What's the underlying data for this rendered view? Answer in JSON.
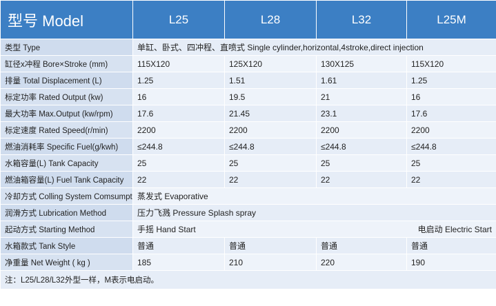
{
  "header": {
    "model_title": "型号 Model",
    "models": [
      "L25",
      "L28",
      "L32",
      "L25M"
    ]
  },
  "rows": {
    "type": {
      "label": "类型 Type",
      "value": "单缸、卧式、四冲程、直喷式 Single cylinder,horizontal,4stroke,direct injection"
    },
    "bore": {
      "label": "缸径x冲程 Bore×Stroke (mm)",
      "values": [
        "115X120",
        "125X120",
        "130X125",
        "115X120"
      ]
    },
    "displacement": {
      "label": "排量 Total Displacement (L)",
      "values": [
        "1.25",
        "1.51",
        "1.61",
        "1.25"
      ]
    },
    "rated_output": {
      "label": "标定功率 Rated Output (kw)",
      "values": [
        "16",
        "19.5",
        "21",
        "16"
      ]
    },
    "max_output": {
      "label": "最大功率 Max.Output (kw/rpm)",
      "values": [
        "17.6",
        "21.45",
        "23.1",
        "17.6"
      ]
    },
    "rated_speed": {
      "label": "标定速度 Rated Speed(r/min)",
      "values": [
        "2200",
        "2200",
        "2200",
        "2200"
      ]
    },
    "specific_fuel": {
      "label": "燃油消耗率 Specific Fuel(g/kwh)",
      "values": [
        "≤244.8",
        "≤244.8",
        "≤244.8",
        "≤244.8"
      ]
    },
    "tank_capacity": {
      "label": "水箱容量(L) Tank Capacity",
      "values": [
        "25",
        "25",
        "25",
        "25"
      ]
    },
    "fuel_tank": {
      "label": "燃油箱容量(L) Fuel Tank Capacity",
      "values": [
        "22",
        "22",
        "22",
        "22"
      ]
    },
    "cooling": {
      "label": "冷却方式 Colling System Comsumption",
      "value": "蒸发式 Evaporative"
    },
    "lubrication": {
      "label": "润滑方式 Lubrication Method",
      "value": "压力飞溅 Pressure Splash spray"
    },
    "starting": {
      "label": "起动方式 Starting Method",
      "value": "手摇 Hand Start",
      "value_m": "电启动 Electric Start"
    },
    "tank_style": {
      "label": "水箱款式 Tank Style",
      "values": [
        "普通",
        "普通",
        "普通",
        "普通"
      ]
    },
    "net_weight": {
      "label": "净重量 Net Weight ( kg )",
      "values": [
        "185",
        "210",
        "220",
        "190"
      ]
    }
  },
  "footnote": "注：L25/L28/L32外型一样，M表示电启动。"
}
